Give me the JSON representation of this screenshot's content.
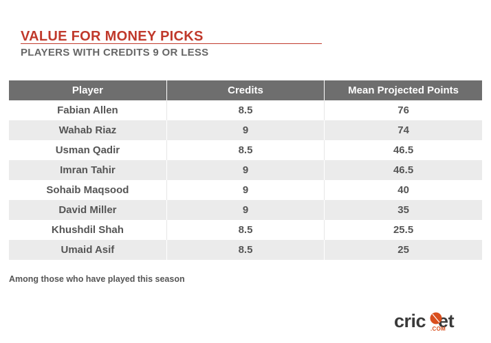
{
  "colors": {
    "title": "#c0392b",
    "subtitle": "#666666",
    "header_bg": "#6e6e6e",
    "header_text": "#ffffff",
    "row_alt_bg": "#ebebeb",
    "cell_text": "#555555",
    "footnote": "#555555",
    "logo_accent": "#d94f1e"
  },
  "header": {
    "title": "VALUE FOR MONEY PICKS",
    "subtitle": "PLAYERS WITH CREDITS 9 OR LESS"
  },
  "table": {
    "columns": [
      "Player",
      "Credits",
      "Mean Projected Points"
    ],
    "rows": [
      [
        "Fabian Allen",
        "8.5",
        "76"
      ],
      [
        "Wahab Riaz",
        "9",
        "74"
      ],
      [
        "Usman Qadir",
        "8.5",
        "46.5"
      ],
      [
        "Imran Tahir",
        "9",
        "46.5"
      ],
      [
        "Sohaib Maqsood",
        "9",
        "40"
      ],
      [
        "David Miller",
        "9",
        "35"
      ],
      [
        "Khushdil Shah",
        "8.5",
        "25.5"
      ],
      [
        "Umaid Asif",
        "8.5",
        "25"
      ]
    ]
  },
  "footnote": "Among those who have played this season",
  "logo": {
    "left": "cric",
    "right": "et",
    "dotcom": ".COM",
    "icon": "cricket-ball-icon"
  }
}
